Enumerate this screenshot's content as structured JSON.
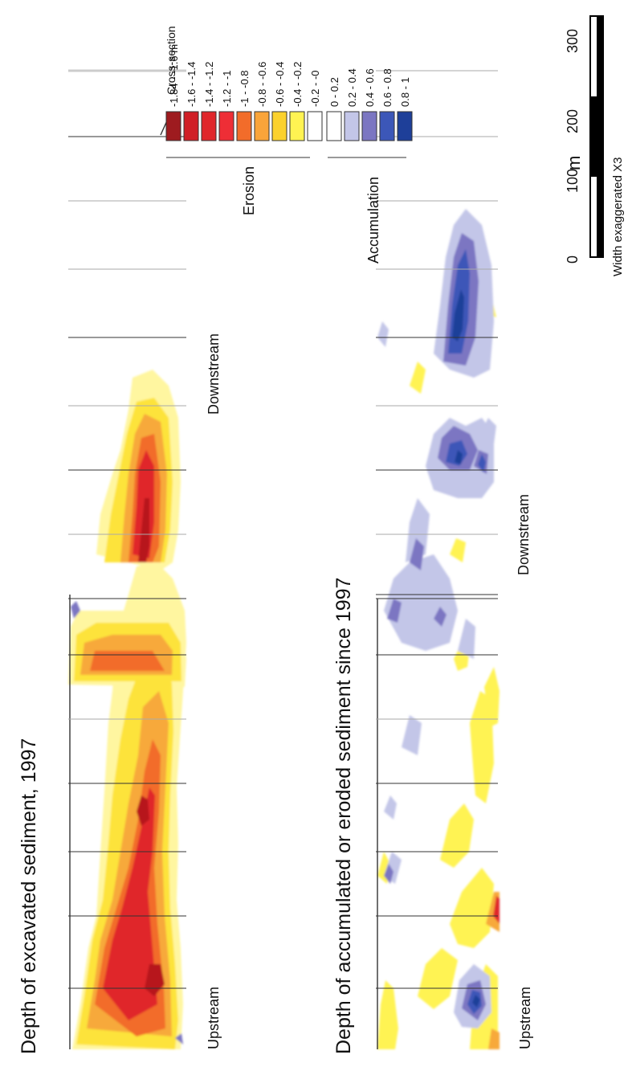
{
  "titles": {
    "panel1": "Depth of excavated sediment, 1997",
    "panel2": "Depth of accumulated or eroded sediment since 1997"
  },
  "labels": {
    "upstream": "Upstream",
    "downstream": "Downstream"
  },
  "legend": {
    "cross_section_label": "Cross-section",
    "classes": [
      {
        "label": "-1.84 - -1.6 m",
        "color": "#9e1b1f"
      },
      {
        "label": "-1.6 - -1.4",
        "color": "#d01f26"
      },
      {
        "label": "-1.4 - -1.2",
        "color": "#e0262b"
      },
      {
        "label": "-1.2 - -1",
        "color": "#ee2e36"
      },
      {
        "label": "-1 - -0.8",
        "color": "#f26c2a"
      },
      {
        "label": "-0.8 - -0.6",
        "color": "#f9a43a"
      },
      {
        "label": "-0.6 - -0.4",
        "color": "#fbd12d"
      },
      {
        "label": "-0.4 - -0.2",
        "color": "#fff352"
      },
      {
        "label": "-0.2 - -0",
        "color": "#ffffff"
      },
      {
        "label": "0 - 0.2",
        "color": "#ffffff"
      },
      {
        "label": "0.2 - 0.4",
        "color": "#c3c6e8"
      },
      {
        "label": "0.4 - 0.6",
        "color": "#7b76c2"
      },
      {
        "label": "0.6 - 0.8",
        "color": "#3c57b8"
      },
      {
        "label": "0.8 - 1",
        "color": "#1e3f99"
      }
    ],
    "erosion_label": "Erosion",
    "accumulation_label": "Accumulation"
  },
  "scale": {
    "ticks": [
      "0",
      "100",
      "200",
      "300"
    ],
    "unit": "m",
    "note": "Width exaggerated X3"
  }
}
